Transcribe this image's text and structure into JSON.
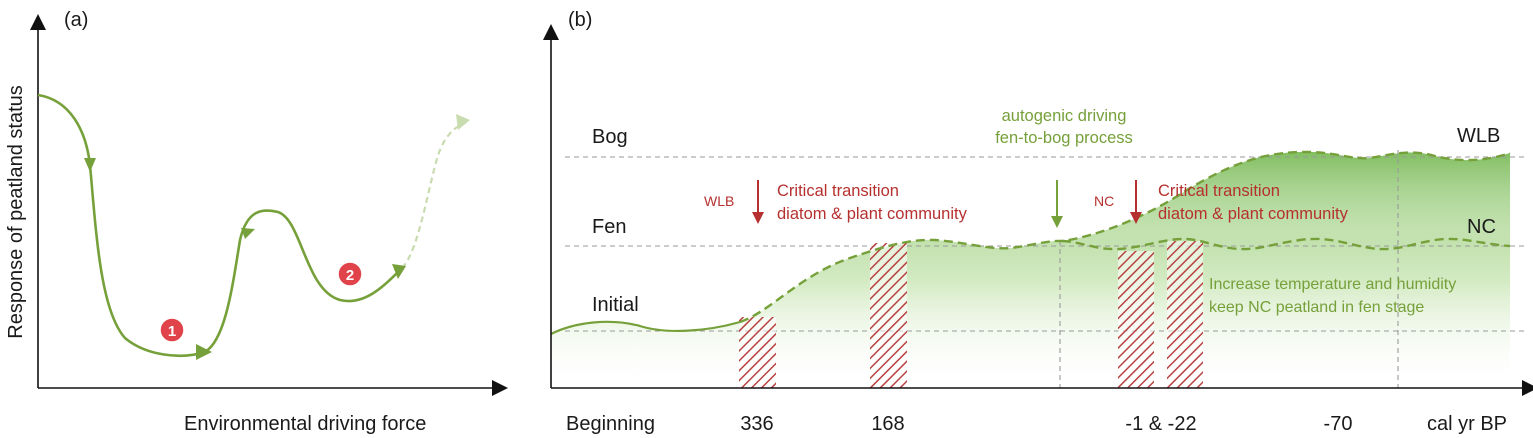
{
  "panel_a": {
    "tag": "(a)",
    "y_axis_label": "Response of peatland status",
    "x_axis_label": "Environmental driving force",
    "markers": [
      "1",
      "2"
    ]
  },
  "panel_b": {
    "tag": "(b)",
    "levels": {
      "bog": "Bog",
      "fen": "Fen",
      "initial": "Initial"
    },
    "sites_right": {
      "wlb": "WLB",
      "nc": "NC"
    },
    "autogenic_line1": "autogenic driving",
    "autogenic_line2": "fen-to-bog process",
    "transition_wlb": {
      "site": "WLB",
      "line1": "Critical transition",
      "line2": "diatom & plant community"
    },
    "transition_nc": {
      "site": "NC",
      "line1": "Critical transition",
      "line2": "diatom & plant community"
    },
    "climate_line1": "Increase temperature and humidity",
    "climate_line2": "keep NC peatland in fen stage",
    "x_ticks": [
      "Beginning",
      "336",
      "168",
      "-1 & -22",
      "-70",
      "cal yr BP"
    ]
  },
  "colors": {
    "curve_green": "#76a03a",
    "fill_green": "#8cc76a",
    "label_red": "#b5302f",
    "marker_red": "#e0434a"
  }
}
